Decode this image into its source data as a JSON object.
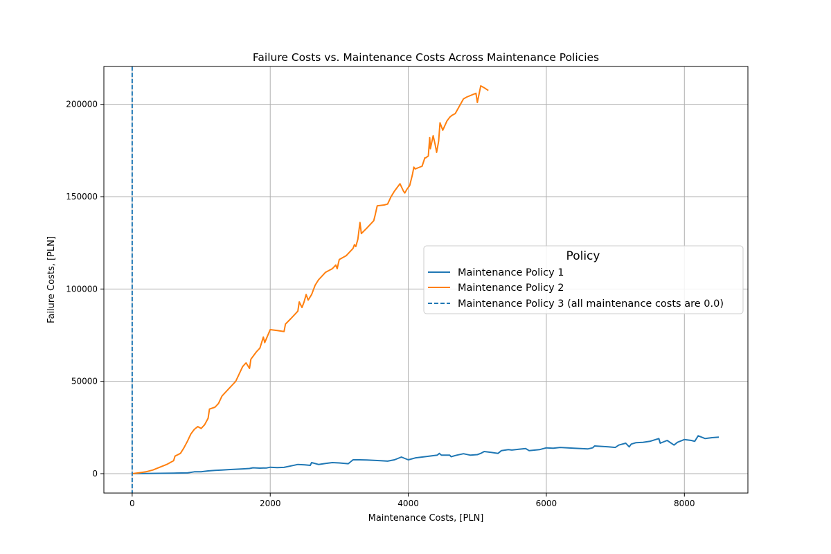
{
  "chart_data": {
    "type": "line",
    "title": "Failure Costs vs. Maintenance Costs Across Maintenance Policies",
    "xlabel": "Maintenance Costs, [PLN]",
    "ylabel": "Failure Costs, [PLN]",
    "xlim": [
      -410,
      8920
    ],
    "ylim": [
      -10500,
      220500
    ],
    "xticks": [
      0,
      2000,
      4000,
      6000,
      8000
    ],
    "xtick_labels": [
      "0",
      "2000",
      "4000",
      "6000",
      "8000"
    ],
    "yticks": [
      0,
      50000,
      100000,
      150000,
      200000
    ],
    "ytick_labels": [
      "0",
      "50000",
      "100000",
      "150000",
      "200000"
    ],
    "grid": true,
    "legend": {
      "title": "Policy",
      "placement": "center-right",
      "entries": [
        "Maintenance Policy 1",
        "Maintenance Policy 2",
        "Maintenance Policy 3 (all maintenance costs are 0.0)"
      ]
    },
    "series": [
      {
        "name": "Maintenance Policy 1",
        "color": "#1f77b4",
        "style": "solid",
        "x": [
          0,
          200,
          400,
          600,
          800,
          900,
          1000,
          1100,
          1200,
          1300,
          1400,
          1500,
          1600,
          1700,
          1750,
          1850,
          1950,
          2000,
          2100,
          2200,
          2300,
          2400,
          2500,
          2580,
          2600,
          2700,
          2800,
          2900,
          3000,
          3130,
          3200,
          3300,
          3400,
          3500,
          3600,
          3700,
          3800,
          3900,
          4000,
          4100,
          4200,
          4300,
          4420,
          4450,
          4480,
          4600,
          4620,
          4700,
          4800,
          4900,
          5000,
          5050,
          5100,
          5200,
          5300,
          5350,
          5450,
          5500,
          5600,
          5700,
          5750,
          5900,
          6000,
          6100,
          6200,
          6400,
          6600,
          6670,
          6700,
          6900,
          7000,
          7050,
          7150,
          7200,
          7230,
          7300,
          7400,
          7500,
          7630,
          7650,
          7750,
          7850,
          7900,
          8000,
          8100,
          8150,
          8200,
          8300,
          8400,
          8500
        ],
        "y": [
          0,
          100,
          200,
          300,
          400,
          1000,
          1000,
          1500,
          1800,
          2000,
          2200,
          2400,
          2600,
          2800,
          3200,
          3000,
          3100,
          3500,
          3300,
          3400,
          4200,
          5000,
          4800,
          4500,
          6000,
          5000,
          5500,
          6000,
          5800,
          5400,
          7500,
          7500,
          7400,
          7200,
          7000,
          6800,
          7500,
          9000,
          7500,
          8500,
          9000,
          9500,
          10000,
          11000,
          10000,
          10000,
          9200,
          10000,
          10800,
          10000,
          10300,
          11000,
          12000,
          11500,
          11000,
          12500,
          13000,
          12800,
          13200,
          13600,
          12500,
          13000,
          14000,
          13800,
          14200,
          13800,
          13400,
          14000,
          15000,
          14500,
          14200,
          15500,
          16500,
          14500,
          16000,
          16800,
          17000,
          17500,
          19000,
          16500,
          18000,
          15500,
          17000,
          18500,
          18000,
          17500,
          20500,
          19000,
          19500,
          19800
        ]
      },
      {
        "name": "Maintenance Policy 2",
        "color": "#ff7f0e",
        "style": "solid",
        "x": [
          0,
          100,
          200,
          300,
          400,
          500,
          600,
          620,
          700,
          750,
          800,
          850,
          900,
          950,
          1000,
          1050,
          1100,
          1120,
          1200,
          1250,
          1300,
          1400,
          1450,
          1500,
          1550,
          1600,
          1650,
          1700,
          1720,
          1800,
          1850,
          1900,
          1920,
          2000,
          2100,
          2200,
          2220,
          2300,
          2400,
          2420,
          2460,
          2490,
          2520,
          2550,
          2600,
          2650,
          2700,
          2800,
          2900,
          2950,
          2970,
          3000,
          3100,
          3200,
          3220,
          3240,
          3270,
          3300,
          3320,
          3400,
          3500,
          3520,
          3550,
          3650,
          3700,
          3750,
          3800,
          3880,
          3930,
          3950,
          3980,
          4020,
          4060,
          4080,
          4100,
          4200,
          4240,
          4250,
          4290,
          4310,
          4320,
          4360,
          4390,
          4410,
          4440,
          4460,
          4500,
          4560,
          4600,
          4630,
          4680,
          4800,
          4850,
          4980,
          5000,
          5050,
          5100,
          5160
        ],
        "y": [
          0,
          500,
          1000,
          2000,
          3500,
          5000,
          7000,
          9500,
          11000,
          14000,
          17500,
          21500,
          24000,
          25500,
          24500,
          26500,
          30000,
          35000,
          36000,
          38000,
          42000,
          46000,
          48000,
          50000,
          54000,
          58000,
          60000,
          57000,
          62000,
          66000,
          68000,
          74000,
          71000,
          78000,
          77500,
          77000,
          81000,
          84000,
          88000,
          93000,
          90000,
          93000,
          97000,
          94000,
          97000,
          102000,
          105000,
          109000,
          111000,
          113000,
          111000,
          116000,
          118000,
          122000,
          124000,
          123000,
          127000,
          136000,
          130000,
          133000,
          137000,
          140000,
          145000,
          145500,
          146000,
          150000,
          153000,
          157000,
          153000,
          152000,
          154000,
          156000,
          162000,
          166000,
          165000,
          166500,
          171000,
          171000,
          172000,
          182000,
          176000,
          183000,
          178000,
          174000,
          180000,
          190000,
          186000,
          191000,
          193000,
          194000,
          195000,
          203000,
          204000,
          206000,
          201000,
          210000,
          209000,
          207500
        ]
      },
      {
        "name": "Maintenance Policy 3 (all maintenance costs are 0.0)",
        "color": "#1f77b4",
        "style": "dashed",
        "vline_x": 0
      }
    ]
  }
}
